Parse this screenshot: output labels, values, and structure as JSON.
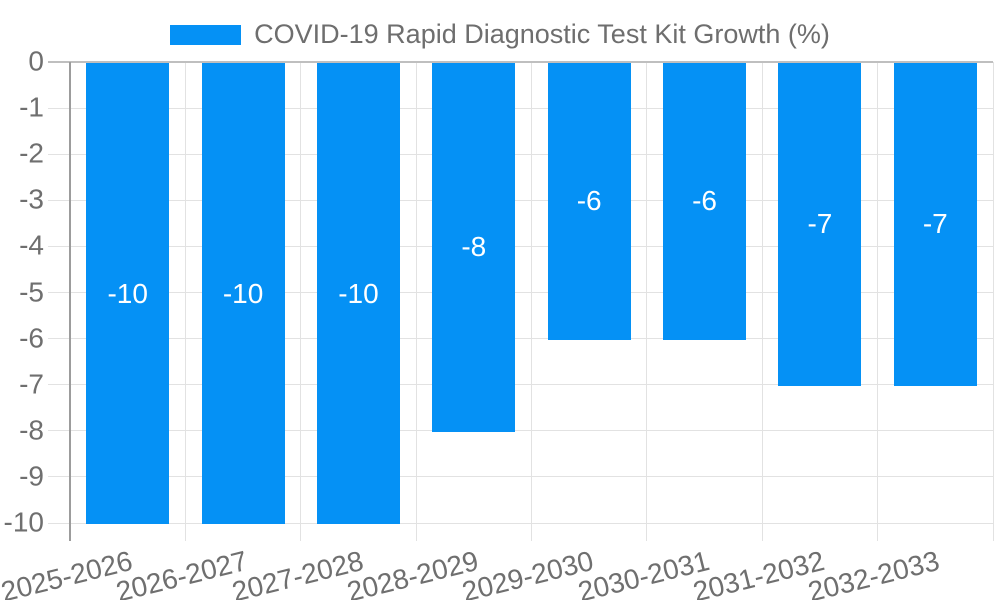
{
  "chart_data": {
    "type": "bar",
    "title": "COVID-19 Rapid Diagnostic Test Kit Growth (%)",
    "categories": [
      "2025-2026",
      "2026-2027",
      "2027-2028",
      "2028-2029",
      "2029-2030",
      "2030-2031",
      "2031-2032",
      "2032-2033"
    ],
    "values": [
      -10,
      -10,
      -10,
      -8,
      -6,
      -6,
      -7,
      -7
    ],
    "xlabel": "",
    "ylabel": "",
    "ylim": [
      -10,
      0
    ],
    "yticks": [
      0,
      -1,
      -2,
      -3,
      -4,
      -5,
      -6,
      -7,
      -8,
      -9,
      -10
    ],
    "legend_position": "top",
    "grid": true,
    "bar_label_position": "center",
    "colors": {
      "bar": "#0591f5",
      "bar_label": "#ffffff",
      "gridline": "#e2e2e2",
      "zero_line": "#bfbfbf",
      "axis_line": "#9c9c9c",
      "tick_text": "#6f6f6f",
      "title_text": "#6e6e6e",
      "background": "#ffffff"
    }
  }
}
